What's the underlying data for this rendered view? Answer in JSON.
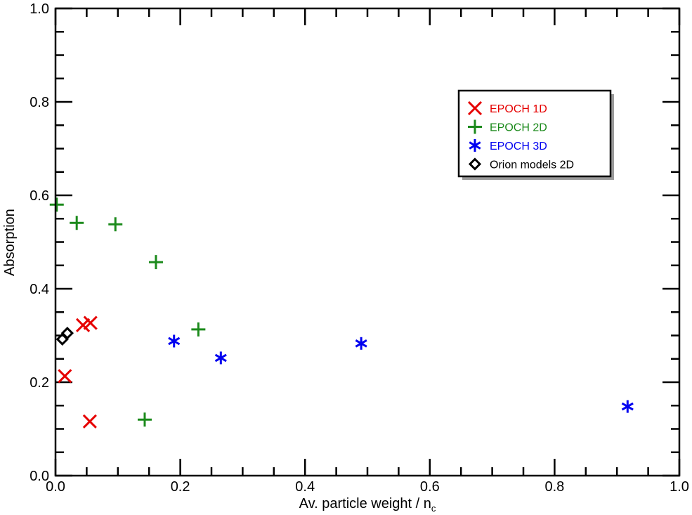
{
  "chart_data": {
    "type": "scatter",
    "xlabel": "Av. particle weight / n",
    "xlabel_subscript": "c",
    "ylabel": "Absorption",
    "xlim": [
      0,
      1
    ],
    "ylim": [
      0,
      1
    ],
    "x_ticks": [
      "0.0",
      "0.2",
      "0.4",
      "0.6",
      "0.8",
      "1.0"
    ],
    "y_ticks": [
      "0.0",
      "0.2",
      "0.4",
      "0.6",
      "0.8",
      "1.0"
    ],
    "grid": false,
    "legend_position": "top-right",
    "series": [
      {
        "name": "EPOCH 1D",
        "marker": "x",
        "color": "#e60000",
        "points": [
          [
            0.015,
            0.213
          ],
          [
            0.044,
            0.322
          ],
          [
            0.056,
            0.327
          ],
          [
            0.055,
            0.116
          ]
        ]
      },
      {
        "name": "EPOCH 2D",
        "marker": "plus",
        "color": "#1b8a1b",
        "points": [
          [
            0.002,
            0.58
          ],
          [
            0.034,
            0.541
          ],
          [
            0.096,
            0.538
          ],
          [
            0.161,
            0.457
          ],
          [
            0.229,
            0.313
          ],
          [
            0.143,
            0.12
          ]
        ]
      },
      {
        "name": "EPOCH 3D",
        "marker": "star",
        "color": "#0000f0",
        "points": [
          [
            0.19,
            0.288
          ],
          [
            0.265,
            0.252
          ],
          [
            0.49,
            0.283
          ],
          [
            0.917,
            0.148
          ]
        ]
      },
      {
        "name": "Orion models 2D",
        "marker": "diamond",
        "color": "#000000",
        "points": [
          [
            0.011,
            0.292
          ],
          [
            0.019,
            0.305
          ]
        ]
      }
    ]
  }
}
